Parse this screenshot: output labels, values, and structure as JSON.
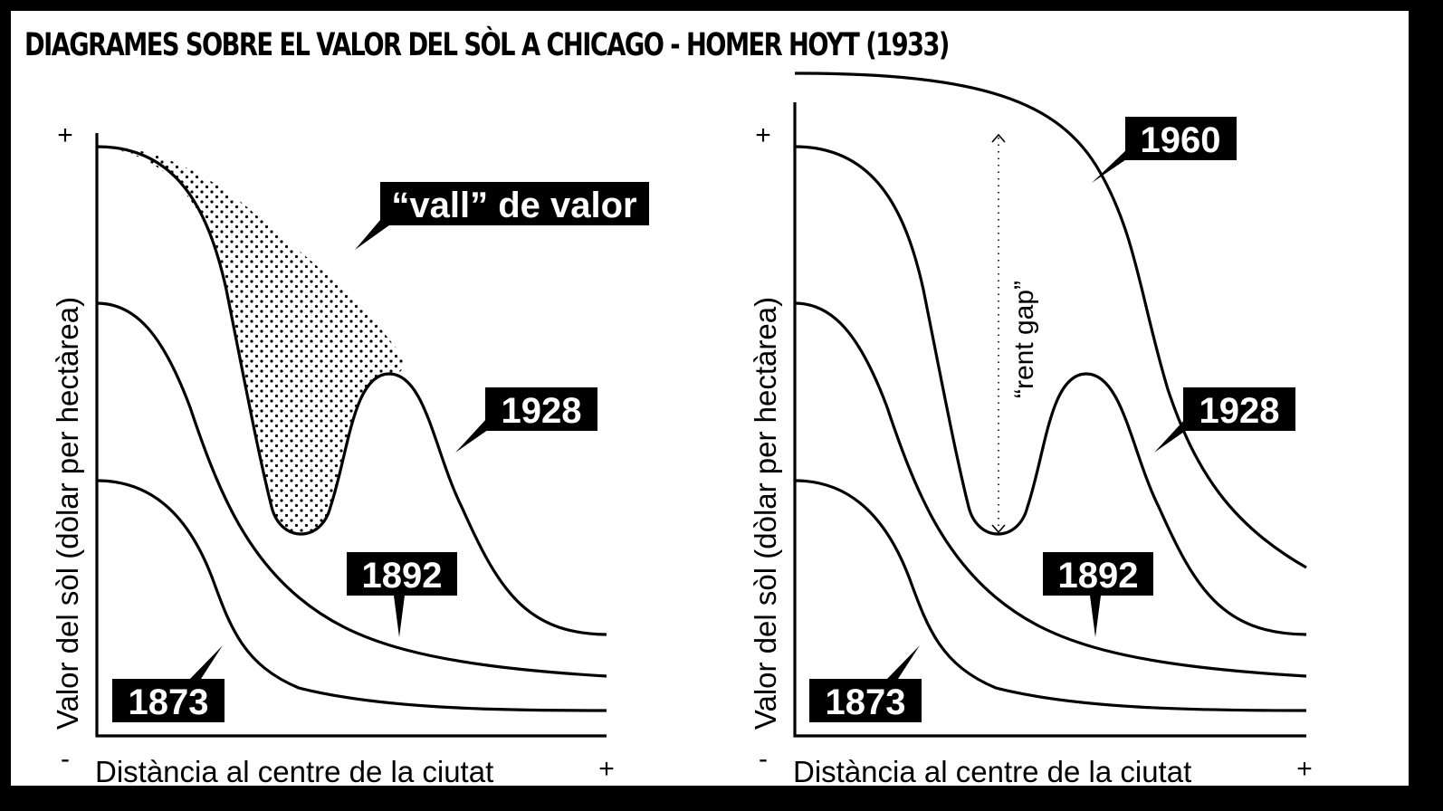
{
  "title": "DIAGRAMES SOBRE EL VALOR DEL SÒL A CHICAGO - HOMER HOYT (1933)",
  "left_panel": {
    "y_axis_label": "Valor del sòl (dòlar per hectàrea)",
    "x_axis_label": "Distància al centre de la ciutat",
    "y_plus": "+",
    "x_minus": "-",
    "x_plus": "+",
    "labels": {
      "valley": "“vall” de valor",
      "y1928": "1928",
      "y1892": "1892",
      "y1873": "1873"
    }
  },
  "right_panel": {
    "y_axis_label": "Valor del sòl (dòlar per hectàrea)",
    "x_axis_label": "Distància al centre de la ciutat",
    "y_plus": "+",
    "x_minus": "-",
    "x_plus": "+",
    "gap_label": "“rent gap”",
    "labels": {
      "y1960": "1960",
      "y1928": "1928",
      "y1892": "1892",
      "y1873": "1873"
    }
  },
  "colors": {
    "ink": "#000000",
    "paper": "#ffffff"
  }
}
